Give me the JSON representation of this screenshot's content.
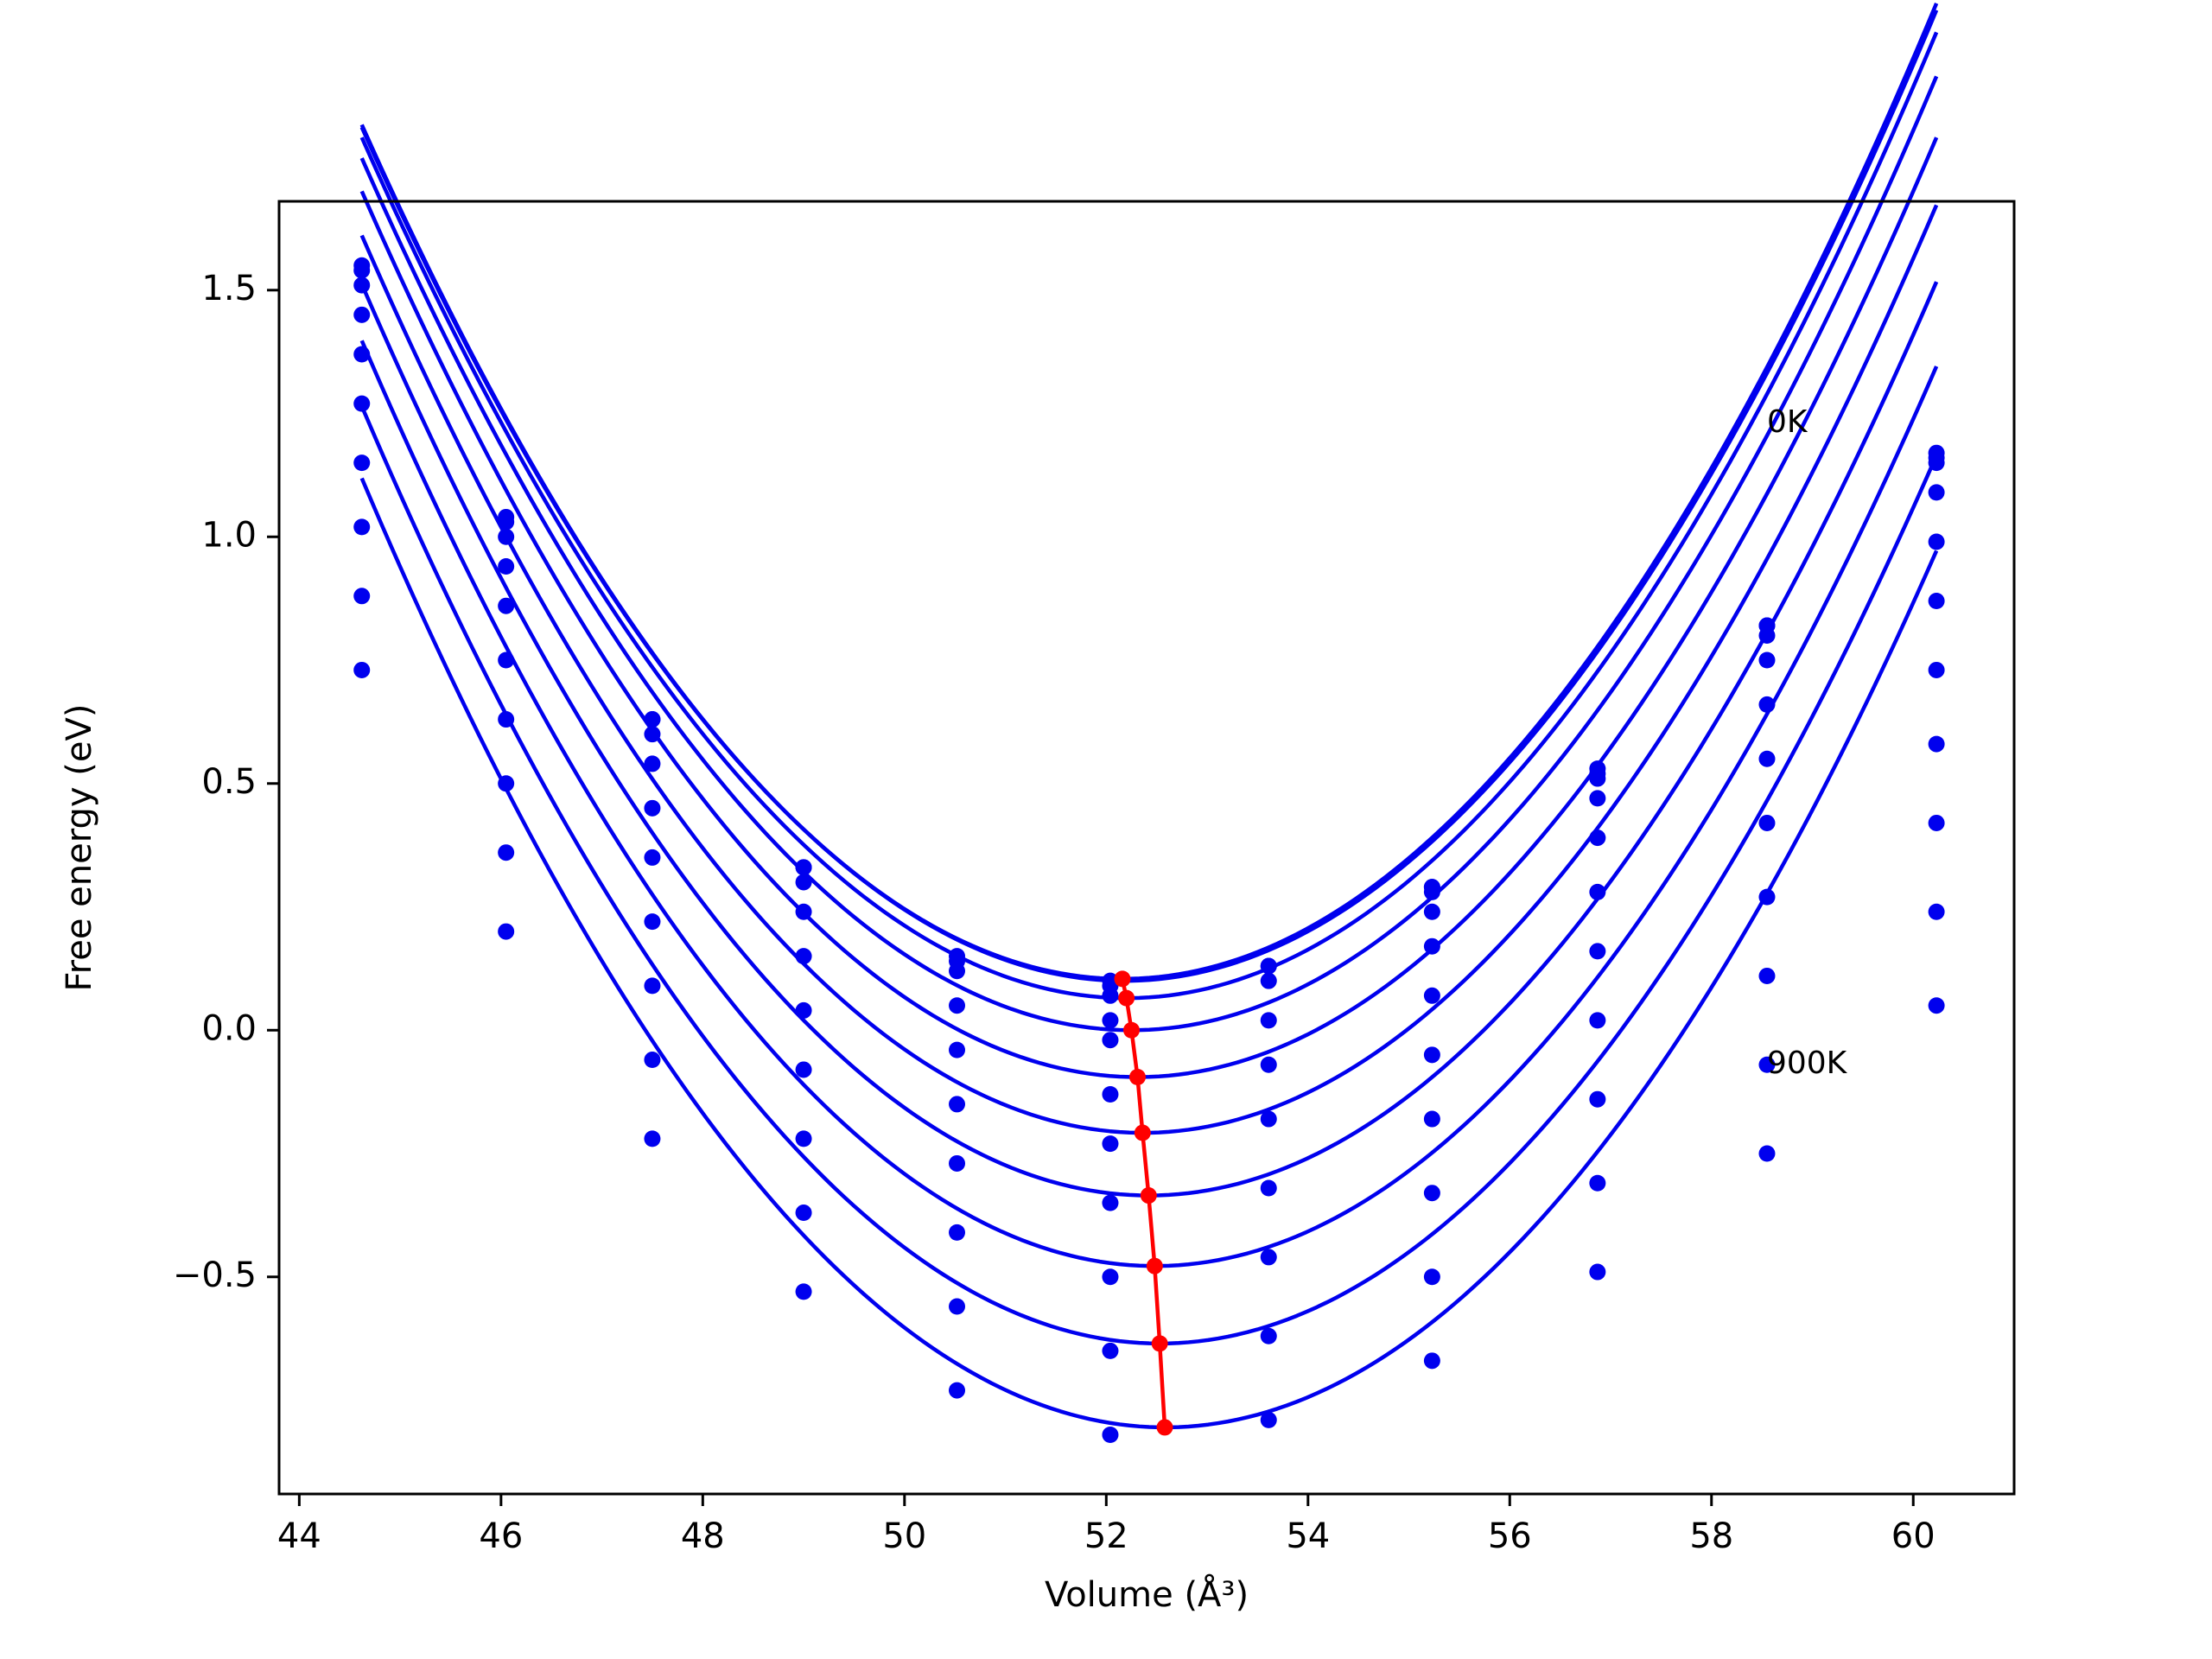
{
  "chart_data": {
    "type": "line",
    "xlabel": "Volume (Å³)",
    "ylabel": "Free energy (eV)",
    "xlim": [
      43.8,
      61.0
    ],
    "ylim": [
      -0.94,
      1.68
    ],
    "x_ticks": [
      44,
      46,
      48,
      50,
      52,
      54,
      56,
      58,
      60
    ],
    "x_tick_labels": [
      "44",
      "46",
      "48",
      "50",
      "52",
      "54",
      "56",
      "58",
      "60"
    ],
    "y_ticks": [
      -0.5,
      0.0,
      0.5,
      1.0,
      1.5
    ],
    "y_tick_labels": [
      "−0.5",
      "0.0",
      "0.5",
      "1.0",
      "1.5"
    ],
    "grid": false,
    "volumes": [
      44.62,
      46.05,
      47.5,
      49.0,
      50.52,
      52.04,
      53.61,
      55.23,
      56.87,
      58.55,
      60.23
    ],
    "series": [
      {
        "values": [
          1.55,
          1.04,
          0.63,
          0.33,
          0.15,
          0.1,
          0.13,
          0.29,
          0.52,
          0.82,
          1.16
        ],
        "fit": {
          "a": 0.03036,
          "vmin": 52.16,
          "fmin": 0.104
        }
      },
      {
        "values": [
          1.54,
          1.03,
          0.63,
          0.33,
          0.14,
          0.09,
          0.13,
          0.29,
          0.53,
          0.82,
          1.17
        ],
        "fit": {
          "a": 0.03036,
          "vmin": 52.18,
          "fmin": 0.1
        }
      },
      {
        "values": [
          1.51,
          1.0,
          0.6,
          0.3,
          0.12,
          0.07,
          0.1,
          0.28,
          0.51,
          0.8,
          1.15
        ],
        "fit": {
          "a": 0.03036,
          "vmin": 52.2,
          "fmin": 0.065
        }
      },
      {
        "values": [
          1.45,
          0.94,
          0.54,
          0.24,
          0.05,
          0.02,
          0.02,
          0.24,
          0.47,
          0.75,
          1.09
        ],
        "fit": {
          "a": 0.03036,
          "vmin": 52.25,
          "fmin": 0.0
        }
      },
      {
        "values": [
          1.37,
          0.86,
          0.45,
          0.15,
          -0.04,
          -0.02,
          -0.07,
          0.17,
          0.39,
          0.66,
          0.99
        ],
        "fit": {
          "a": 0.03036,
          "vmin": 52.31,
          "fmin": -0.095
        }
      },
      {
        "values": [
          1.27,
          0.75,
          0.35,
          0.04,
          -0.15,
          -0.13,
          -0.18,
          0.07,
          0.28,
          0.55,
          0.87
        ],
        "fit": {
          "a": 0.03036,
          "vmin": 52.36,
          "fmin": -0.208
        }
      },
      {
        "values": [
          1.15,
          0.63,
          0.22,
          -0.08,
          -0.27,
          -0.23,
          -0.32,
          -0.05,
          0.16,
          0.42,
          0.73
        ],
        "fit": {
          "a": 0.03036,
          "vmin": 52.42,
          "fmin": -0.335
        }
      },
      {
        "values": [
          1.02,
          0.5,
          0.09,
          -0.22,
          -0.41,
          -0.35,
          -0.46,
          -0.18,
          0.02,
          0.27,
          0.58
        ],
        "fit": {
          "a": 0.03036,
          "vmin": 52.48,
          "fmin": -0.478
        }
      },
      {
        "values": [
          0.88,
          0.36,
          -0.06,
          -0.37,
          -0.56,
          -0.5,
          -0.62,
          -0.33,
          -0.14,
          0.11,
          0.42
        ],
        "fit": {
          "a": 0.03036,
          "vmin": 52.53,
          "fmin": -0.635
        }
      },
      {
        "values": [
          0.73,
          0.2,
          -0.22,
          -0.53,
          -0.73,
          -0.65,
          -0.79,
          -0.5,
          -0.31,
          -0.07,
          0.24
        ],
        "fit": {
          "a": 0.03036,
          "vmin": 52.58,
          "fmin": -0.805
        }
      },
      {
        "values": [
          null,
          null,
          null,
          null,
          null,
          -0.82,
          null,
          -0.67,
          -0.49,
          -0.25,
          0.05
        ],
        "fit": null
      }
    ],
    "minimum_path": {
      "x": [
        52.16,
        52.2,
        52.25,
        52.31,
        52.36,
        52.42,
        52.48,
        52.53,
        52.58
      ],
      "y": [
        0.104,
        0.065,
        0.0,
        -0.095,
        -0.208,
        -0.335,
        -0.478,
        -0.635,
        -0.805
      ]
    },
    "annotations": [
      {
        "text": "0K",
        "x": 58.55,
        "y": 1.23
      },
      {
        "text": "900K",
        "x": 58.55,
        "y": -0.07
      }
    ],
    "colors": {
      "curves": "#0000ee",
      "min_path": "#ff0000",
      "axes": "#000000"
    }
  }
}
